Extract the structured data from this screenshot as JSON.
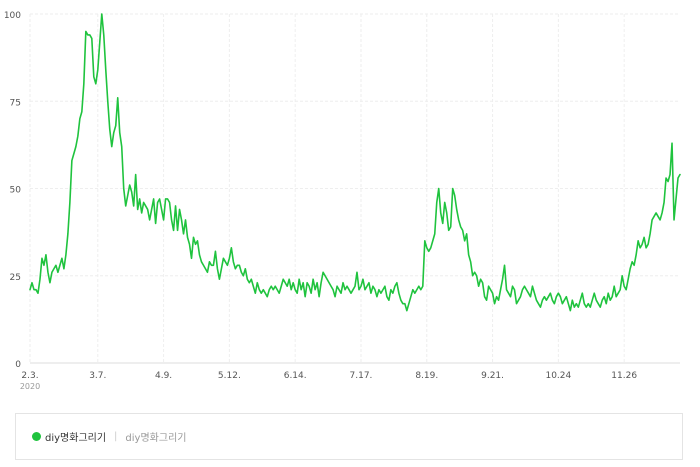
{
  "chart_data": {
    "type": "line",
    "xlabel": "",
    "ylabel": "",
    "ylim": [
      0,
      100
    ],
    "yticks": [
      0,
      25,
      50,
      75,
      100
    ],
    "grid": true,
    "legend_position": "bottom",
    "xtick_labels": [
      {
        "label": "2.3.",
        "sublabel": "2020",
        "index": 0
      },
      {
        "label": "3.7.",
        "index": 34
      },
      {
        "label": "4.9.",
        "index": 67
      },
      {
        "label": "5.12.",
        "index": 100
      },
      {
        "label": "6.14.",
        "index": 133
      },
      {
        "label": "7.17.",
        "index": 166
      },
      {
        "label": "8.19.",
        "index": 199
      },
      {
        "label": "9.21.",
        "index": 232
      },
      {
        "label": "10.24",
        "index": 265
      },
      {
        "label": "11.26",
        "index": 298
      }
    ],
    "series": [
      {
        "name": "diy명화그리기",
        "color": "#1fc33e",
        "values": [
          21,
          23,
          21,
          21,
          20,
          24,
          30,
          28,
          31,
          26,
          23,
          26,
          27,
          28,
          26,
          28,
          30,
          27,
          31,
          37,
          46,
          58,
          60,
          62,
          65,
          70,
          72,
          80,
          95,
          94,
          94,
          93,
          82,
          80,
          84,
          92,
          100,
          94,
          84,
          75,
          67,
          62,
          66,
          68,
          76,
          66,
          62,
          50,
          45,
          48,
          51,
          49,
          45,
          54,
          44,
          47,
          43,
          46,
          45,
          44,
          41,
          44,
          47,
          40,
          46,
          47,
          44,
          41,
          47,
          47,
          46,
          41,
          38,
          45,
          38,
          44,
          41,
          37,
          41,
          36,
          34,
          30,
          36,
          34,
          35,
          31,
          29,
          28,
          27,
          26,
          29,
          28,
          28,
          32,
          27,
          24,
          27,
          30,
          29,
          28,
          30,
          33,
          29,
          27,
          28,
          28,
          26,
          25,
          27,
          24,
          23,
          24,
          22,
          20,
          23,
          21,
          20,
          21,
          20,
          19,
          21,
          22,
          21,
          22,
          21,
          20,
          22,
          24,
          23,
          22,
          24,
          21,
          23,
          21,
          20,
          24,
          21,
          23,
          19,
          23,
          22,
          20,
          24,
          21,
          23,
          19,
          23,
          26,
          25,
          24,
          23,
          22,
          21,
          19,
          22,
          21,
          20,
          23,
          21,
          22,
          21,
          20,
          21,
          22,
          26,
          21,
          22,
          24,
          21,
          22,
          23,
          20,
          22,
          21,
          19,
          21,
          20,
          21,
          22,
          19,
          18,
          21,
          20,
          22,
          23,
          20,
          18,
          17,
          17,
          15,
          17,
          19,
          21,
          20,
          21,
          22,
          21,
          22,
          35,
          33,
          32,
          33,
          35,
          37,
          46,
          50,
          43,
          40,
          46,
          43,
          38,
          39,
          50,
          48,
          44,
          41,
          39,
          38,
          35,
          37,
          31,
          29,
          25,
          26,
          25,
          22,
          24,
          23,
          19,
          18,
          22,
          21,
          20,
          17,
          19,
          18,
          21,
          24,
          28,
          21,
          20,
          19,
          22,
          21,
          17,
          18,
          19,
          21,
          22,
          21,
          20,
          19,
          22,
          20,
          18,
          17,
          16,
          18,
          19,
          18,
          19,
          20,
          18,
          17,
          19,
          20,
          19,
          17,
          18,
          19,
          17,
          15,
          18,
          16,
          17,
          16,
          18,
          20,
          17,
          16,
          17,
          16,
          18,
          20,
          18,
          17,
          16,
          18,
          19,
          17,
          20,
          18,
          19,
          22,
          19,
          20,
          21,
          25,
          22,
          21,
          24,
          27,
          29,
          28,
          31,
          35,
          33,
          34,
          36,
          33,
          34,
          37,
          41,
          42,
          43,
          42,
          41,
          43,
          46,
          53,
          52,
          54,
          63,
          41,
          47,
          53,
          54
        ]
      }
    ]
  },
  "legend": {
    "primary_label": "diy명화그리기",
    "secondary_label": "diy명화그리기",
    "separator": "|"
  }
}
